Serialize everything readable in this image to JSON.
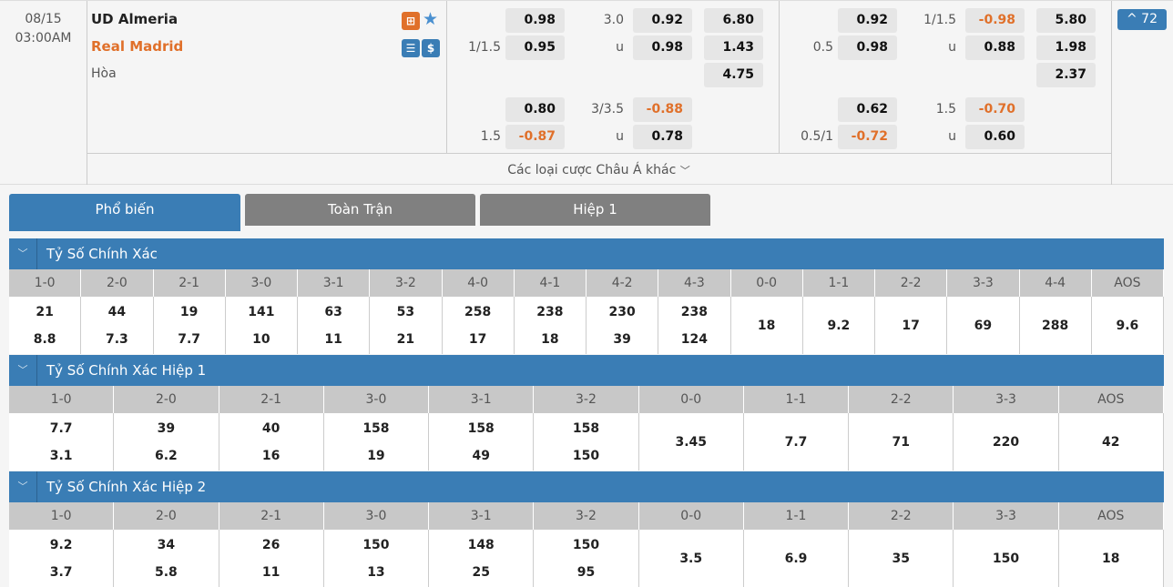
{
  "match": {
    "date": "08/15",
    "time": "03:00AM",
    "home": "UD Almeria",
    "away": "Real Madrid",
    "draw": "Hòa",
    "expand_count": "72",
    "more_label": "Các loại cược Châu Á khác",
    "colors": {
      "accent": "#3a7db5",
      "away": "#e0702a",
      "negative": "#e0702a"
    }
  },
  "odds": {
    "ft": {
      "hdp_line": "1/1.5",
      "hdp_home": "0.98",
      "hdp_away": "0.95",
      "ou_line": "3.0",
      "ou_over": "0.92",
      "ou_u": "u",
      "ou_under": "0.98",
      "x1": "6.80",
      "x2": "1.43",
      "xd": "4.75",
      "hdp2_line": "1.5",
      "hdp2_home": "0.80",
      "hdp2_away": "-0.87",
      "ou2_line": "3/3.5",
      "ou2_over": "-0.88",
      "ou2_u": "u",
      "ou2_under": "0.78"
    },
    "ht": {
      "hdp_line": "0.5",
      "hdp_home": "0.92",
      "hdp_away": "0.98",
      "ou_line": "1/1.5",
      "ou_over": "-0.98",
      "ou_u": "u",
      "ou_under": "0.88",
      "x1": "5.80",
      "x2": "1.98",
      "xd": "2.37",
      "hdp2_line": "0.5/1",
      "hdp2_home": "0.62",
      "hdp2_away": "-0.72",
      "ou2_line": "1.5",
      "ou2_over": "-0.70",
      "ou2_u": "u",
      "ou2_under": "0.60"
    }
  },
  "tabs": [
    {
      "label": "Phổ biến",
      "active": true
    },
    {
      "label": "Toàn Trận"
    },
    {
      "label": "Hiệp 1"
    }
  ],
  "sections": [
    {
      "title": "Tỷ Số Chính Xác",
      "cols": [
        {
          "s": "1-0",
          "v": [
            "21",
            "8.8"
          ]
        },
        {
          "s": "2-0",
          "v": [
            "44",
            "7.3"
          ]
        },
        {
          "s": "2-1",
          "v": [
            "19",
            "7.7"
          ]
        },
        {
          "s": "3-0",
          "v": [
            "141",
            "10"
          ]
        },
        {
          "s": "3-1",
          "v": [
            "63",
            "11"
          ]
        },
        {
          "s": "3-2",
          "v": [
            "53",
            "21"
          ]
        },
        {
          "s": "4-0",
          "v": [
            "258",
            "17"
          ]
        },
        {
          "s": "4-1",
          "v": [
            "238",
            "18"
          ]
        },
        {
          "s": "4-2",
          "v": [
            "230",
            "39"
          ]
        },
        {
          "s": "4-3",
          "v": [
            "238",
            "124"
          ]
        },
        {
          "s": "0-0",
          "v": [
            "18"
          ]
        },
        {
          "s": "1-1",
          "v": [
            "9.2"
          ]
        },
        {
          "s": "2-2",
          "v": [
            "17"
          ]
        },
        {
          "s": "3-3",
          "v": [
            "69"
          ]
        },
        {
          "s": "4-4",
          "v": [
            "288"
          ]
        },
        {
          "s": "AOS",
          "v": [
            "9.6"
          ]
        }
      ]
    },
    {
      "title": "Tỷ Số Chính Xác Hiệp 1",
      "cols": [
        {
          "s": "1-0",
          "v": [
            "7.7",
            "3.1"
          ]
        },
        {
          "s": "2-0",
          "v": [
            "39",
            "6.2"
          ]
        },
        {
          "s": "2-1",
          "v": [
            "40",
            "16"
          ]
        },
        {
          "s": "3-0",
          "v": [
            "158",
            "19"
          ]
        },
        {
          "s": "3-1",
          "v": [
            "158",
            "49"
          ]
        },
        {
          "s": "3-2",
          "v": [
            "158",
            "150"
          ]
        },
        {
          "s": "0-0",
          "v": [
            "3.45"
          ]
        },
        {
          "s": "1-1",
          "v": [
            "7.7"
          ]
        },
        {
          "s": "2-2",
          "v": [
            "71"
          ]
        },
        {
          "s": "3-3",
          "v": [
            "220"
          ]
        },
        {
          "s": "AOS",
          "v": [
            "42"
          ]
        }
      ]
    },
    {
      "title": "Tỷ Số Chính Xác Hiệp 2",
      "cols": [
        {
          "s": "1-0",
          "v": [
            "9.2",
            "3.7"
          ]
        },
        {
          "s": "2-0",
          "v": [
            "34",
            "5.8"
          ]
        },
        {
          "s": "2-1",
          "v": [
            "26",
            "11"
          ]
        },
        {
          "s": "3-0",
          "v": [
            "150",
            "13"
          ]
        },
        {
          "s": "3-1",
          "v": [
            "148",
            "25"
          ]
        },
        {
          "s": "3-2",
          "v": [
            "150",
            "95"
          ]
        },
        {
          "s": "0-0",
          "v": [
            "3.5"
          ]
        },
        {
          "s": "1-1",
          "v": [
            "6.9"
          ]
        },
        {
          "s": "2-2",
          "v": [
            "35"
          ]
        },
        {
          "s": "3-3",
          "v": [
            "150"
          ]
        },
        {
          "s": "AOS",
          "v": [
            "18"
          ]
        }
      ]
    }
  ]
}
